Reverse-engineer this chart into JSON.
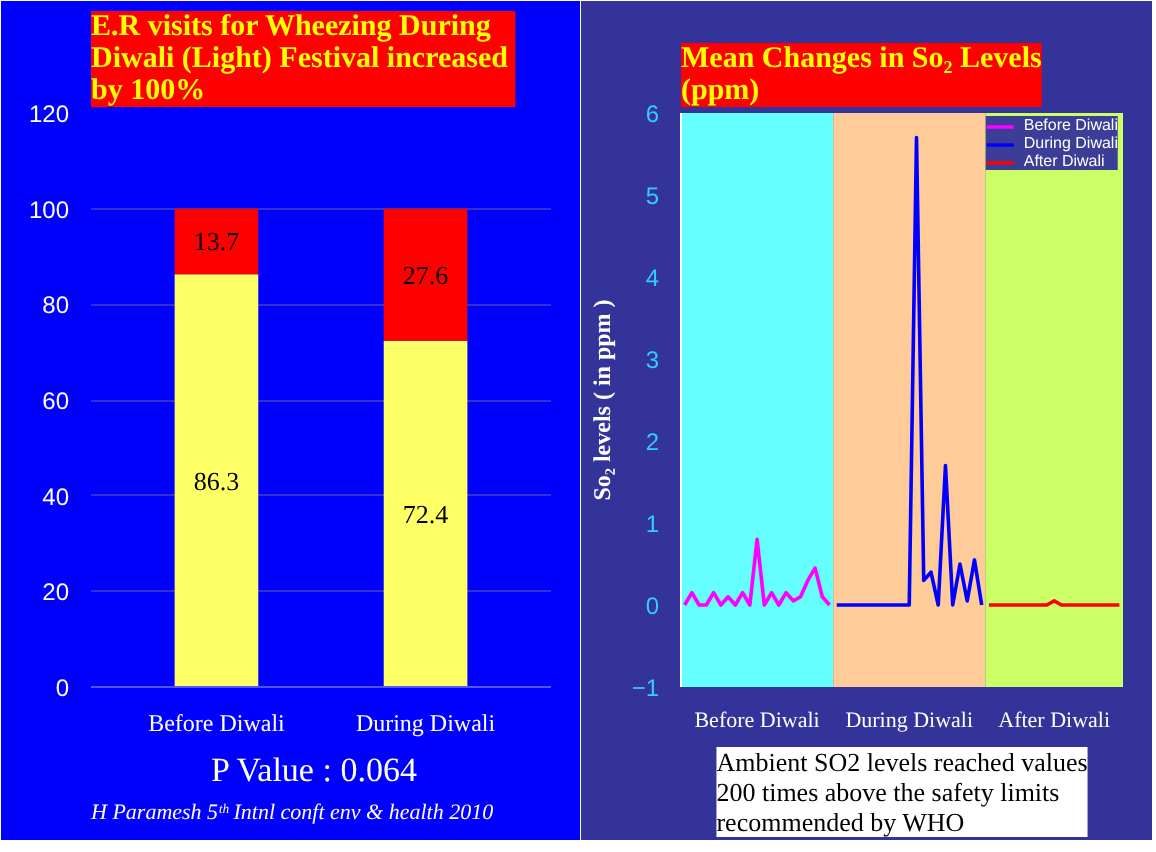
{
  "chart_data": [
    {
      "type": "bar",
      "title": "E.R visits for Wheezing  During Diwali (Light) Festival  increased by 100%",
      "stacked": true,
      "categories": [
        "Before Diwali",
        "During Diwali"
      ],
      "series": [
        {
          "color": "#ffff66",
          "values": [
            86.3,
            72.4
          ]
        },
        {
          "color": "#ff0000",
          "values": [
            13.7,
            27.6
          ]
        }
      ],
      "ylim": [
        0,
        120
      ],
      "yticks": [
        0,
        20,
        40,
        60,
        80,
        100,
        120
      ],
      "grid": "y",
      "data_labels": true,
      "annotations": [
        "P Value : 0.064",
        "H Paramesh 5ᵗʰ Intnl conft  env & health 2010"
      ]
    },
    {
      "type": "line",
      "title": "Mean Changes in So₂ Levels (ppm)",
      "ylabel": "So₂ levels ( in ppm )",
      "legend": "top right",
      "categories": [
        null,
        null,
        null,
        null,
        null,
        null,
        null,
        null,
        null,
        null,
        "Before Diwali",
        null,
        null,
        null,
        null,
        null,
        null,
        null,
        null,
        null,
        null,
        null,
        null,
        null,
        null,
        null,
        null,
        null,
        null,
        null,
        null,
        "During Diwali",
        null,
        null,
        null,
        null,
        null,
        null,
        null,
        null,
        null,
        null,
        null,
        null,
        null,
        null,
        null,
        null,
        null,
        null,
        null,
        "After Diwali",
        null,
        null,
        null,
        null,
        null,
        null,
        null,
        null,
        null
      ],
      "ylim": [
        -1,
        6
      ],
      "yticks": [
        -1,
        0,
        1,
        2,
        3,
        4,
        5,
        6
      ],
      "series": [
        {
          "name": "Before Diwali",
          "color": "#ff00ff",
          "values": [
            0,
            0.15,
            0,
            0,
            0.15,
            0,
            0.1,
            0,
            0.15,
            0,
            0.8,
            0,
            0.15,
            0,
            0.15,
            0.05,
            0.1,
            0.3,
            0.45,
            0.1,
            0,
            null,
            null,
            null,
            null,
            null,
            null,
            null,
            null,
            null,
            null,
            null,
            null,
            null,
            null,
            null,
            null,
            null,
            null,
            null,
            null,
            null,
            null,
            null,
            null,
            null,
            null,
            null,
            null,
            null,
            null,
            null,
            null,
            null,
            null,
            null,
            null,
            null,
            null,
            null,
            null
          ]
        },
        {
          "name": "During Diwali",
          "color": "#0000ff",
          "values": [
            null,
            null,
            null,
            null,
            null,
            null,
            null,
            null,
            null,
            null,
            null,
            null,
            null,
            null,
            null,
            null,
            null,
            null,
            null,
            null,
            null,
            0,
            0,
            0,
            0,
            0,
            0,
            0,
            0,
            0,
            0,
            0,
            5.7,
            0.3,
            0.4,
            0,
            1.7,
            0,
            0.5,
            0.05,
            0.55,
            0,
            null,
            null,
            null,
            null,
            null,
            null,
            null,
            null,
            null,
            null,
            null,
            null,
            null,
            null,
            null,
            null,
            null,
            null,
            null
          ]
        },
        {
          "name": "After Diwali",
          "color": "#ff0000",
          "values": [
            null,
            null,
            null,
            null,
            null,
            null,
            null,
            null,
            null,
            null,
            null,
            null,
            null,
            null,
            null,
            null,
            null,
            null,
            null,
            null,
            null,
            null,
            null,
            null,
            null,
            null,
            null,
            null,
            null,
            null,
            null,
            null,
            null,
            null,
            null,
            null,
            null,
            null,
            null,
            null,
            null,
            null,
            0,
            0,
            0,
            0,
            0,
            0,
            0,
            0,
            0,
            0.05,
            0,
            0,
            0,
            0,
            0,
            0,
            0,
            0,
            0
          ]
        }
      ],
      "annotations": [
        "Ambient SO2 levels reached values 200 times above the  safety limits recommended by WHO"
      ]
    }
  ]
}
